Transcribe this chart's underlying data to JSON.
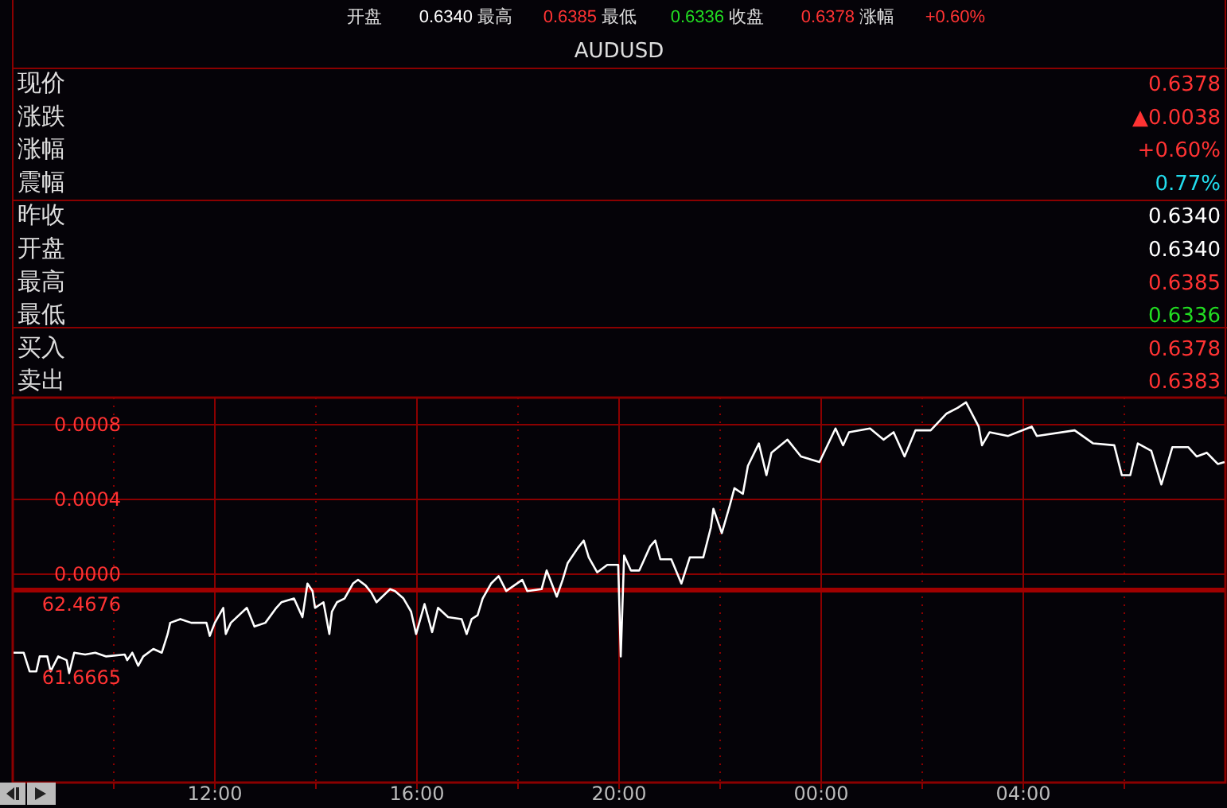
{
  "chart_data": [
    {
      "type": "other",
      "title": "AUDUSD",
      "annotations": [
        "开盘",
        "0.6340",
        "最高",
        "0.6385",
        "最低",
        "0.6336",
        "收盘",
        "0.6378",
        "涨幅",
        "+0.60%",
        "现价",
        "0.6378",
        "涨跌",
        "▲0.0038",
        "涨幅",
        "+0.60%",
        "震幅",
        "0.77%",
        "昨收",
        "0.6340",
        "开盘",
        "0.6340",
        "最高",
        "0.6385",
        "最低",
        "0.6336",
        "买入",
        "0.6378",
        "卖出",
        "0.6383"
      ]
    },
    {
      "type": "line",
      "x": [
        "2000-01-01T08:01",
        "2000-01-01T08:13",
        "2000-01-01T08:20",
        "2000-01-01T08:28",
        "2000-01-01T08:32",
        "2000-01-01T08:41",
        "2000-01-01T08:45",
        "2000-01-01T08:54",
        "2000-01-01T09:04",
        "2000-01-01T09:07",
        "2000-01-01T09:13",
        "2000-01-01T09:26",
        "2000-01-01T09:38",
        "2000-01-01T09:51",
        "2000-01-01T10:13",
        "2000-01-01T10:16",
        "2000-01-01T10:22",
        "2000-01-01T10:29",
        "2000-01-01T10:35",
        "2000-01-01T10:47",
        "2000-01-01T10:57",
        "2000-01-01T11:04",
        "2000-01-01T11:07",
        "2000-01-01T11:19",
        "2000-01-01T11:32",
        "2000-01-01T11:50",
        "2000-01-01T11:54",
        "2000-01-01T12:00",
        "2000-01-01T12:10",
        "2000-01-01T12:13",
        "2000-01-01T12:19",
        "2000-01-01T12:38",
        "2000-01-01T12:47",
        "2000-01-01T13:00",
        "2000-01-01T13:13",
        "2000-01-01T13:19",
        "2000-01-01T13:34",
        "2000-01-01T13:44",
        "2000-01-01T13:50",
        "2000-01-01T13:56",
        "2000-01-01T13:59",
        "2000-01-01T14:09",
        "2000-01-01T14:16",
        "2000-01-01T14:19",
        "2000-01-01T14:25",
        "2000-01-01T14:34",
        "2000-01-01T14:44",
        "2000-01-01T14:50",
        "2000-01-01T14:59",
        "2000-01-01T15:06",
        "2000-01-01T15:12",
        "2000-01-01T15:28",
        "2000-01-01T15:34",
        "2000-01-01T15:44",
        "2000-01-01T15:53",
        "2000-01-01T15:59",
        "2000-01-01T16:09",
        "2000-01-01T16:18",
        "2000-01-01T16:25",
        "2000-01-01T16:37",
        "2000-01-01T16:53",
        "2000-01-01T16:59",
        "2000-01-01T17:05",
        "2000-01-01T17:12",
        "2000-01-01T17:18",
        "2000-01-01T17:28",
        "2000-01-01T17:37",
        "2000-01-01T17:46",
        "2000-01-01T18:05",
        "2000-01-01T18:11",
        "2000-01-01T18:28",
        "2000-01-01T18:34",
        "2000-01-01T18:46",
        "2000-01-01T18:53",
        "2000-01-01T18:59",
        "2000-01-01T19:11",
        "2000-01-01T19:18",
        "2000-01-01T19:24",
        "2000-01-01T19:34",
        "2000-01-01T19:46",
        "2000-01-01T19:59",
        "2000-01-01T20:02",
        "2000-01-01T20:06",
        "2000-01-01T20:14",
        "2000-01-01T20:24",
        "2000-01-01T20:30",
        "2000-01-01T20:37",
        "2000-01-01T20:43",
        "2000-01-01T20:49",
        "2000-01-01T21:02",
        "2000-01-01T21:14",
        "2000-01-01T21:24",
        "2000-01-01T21:40",
        "2000-01-01T21:49",
        "2000-01-01T21:52",
        "2000-01-01T22:02",
        "2000-01-01T22:11",
        "2000-01-01T22:17",
        "2000-01-01T22:27",
        "2000-01-01T22:33",
        "2000-01-01T22:46",
        "2000-01-01T22:55",
        "2000-01-01T23:01",
        "2000-01-01T23:20",
        "2000-01-01T23:36",
        "2000-01-01T23:58",
        "2000-01-02T00:17",
        "2000-01-02T00:26",
        "2000-01-02T00:33",
        "2000-01-02T00:58",
        "2000-01-02T01:14",
        "2000-01-02T01:26",
        "2000-01-02T01:39",
        "2000-01-02T01:52",
        "2000-01-02T02:10",
        "2000-01-02T02:29",
        "2000-01-02T02:42",
        "2000-01-02T02:52",
        "2000-01-02T03:07",
        "2000-01-02T03:11",
        "2000-01-02T03:20",
        "2000-01-02T03:42",
        "2000-01-02T04:10",
        "2000-01-02T04:16",
        "2000-01-02T05:01",
        "2000-01-02T05:23",
        "2000-01-02T05:48",
        "2000-01-02T05:57",
        "2000-01-02T06:07",
        "2000-01-02T06:16",
        "2000-01-02T06:32",
        "2000-01-02T06:44",
        "2000-01-02T06:57",
        "2000-01-02T07:16",
        "2000-01-02T07:26",
        "2000-01-02T07:38",
        "2000-01-02T07:51",
        "2000-01-02T07:59"
      ],
      "series": [
        {
          "color": "#ffffff",
          "values": [
            -0.00042,
            -0.00042,
            -0.00052,
            -0.00052,
            -0.00044,
            -0.00044,
            -0.00052,
            -0.00044,
            -0.00046,
            -0.00053,
            -0.00042,
            -0.00043,
            -0.00042,
            -0.00044,
            -0.00043,
            -0.00046,
            -0.00042,
            -0.00049,
            -0.00044,
            -0.0004,
            -0.00042,
            -0.00032,
            -0.00026,
            -0.00024,
            -0.00026,
            -0.00026,
            -0.00033,
            -0.00026,
            -0.00018,
            -0.00032,
            -0.00026,
            -0.00018,
            -0.00028,
            -0.00026,
            -0.00018,
            -0.00015,
            -0.00013,
            -0.00023,
            -5e-05,
            -9e-05,
            -0.00018,
            -0.00015,
            -0.00032,
            -0.0002,
            -0.00015,
            -0.00013,
            -5e-05,
            -3e-05,
            -6e-05,
            -0.0001,
            -0.00015,
            -8e-05,
            -9e-05,
            -0.00013,
            -0.0002,
            -0.00032,
            -0.00016,
            -0.00031,
            -0.00018,
            -0.00023,
            -0.00024,
            -0.00032,
            -0.00024,
            -0.00022,
            -0.00013,
            -5e-05,
            -1e-05,
            -9e-05,
            -3e-05,
            -9e-05,
            -8e-05,
            2e-05,
            -0.00012,
            -3e-05,
            6e-05,
            0.00014,
            0.00018,
            9e-05,
            1e-05,
            5e-05,
            5e-05,
            -0.00044,
            0.0001,
            2e-05,
            2e-05,
            8e-05,
            0.00015,
            0.00018,
            8e-05,
            8e-05,
            -5e-05,
            9e-05,
            9e-05,
            0.00025,
            0.00035,
            0.00022,
            0.00036,
            0.00046,
            0.00043,
            0.00058,
            0.0007,
            0.00053,
            0.00065,
            0.00072,
            0.00063,
            0.0006,
            0.00078,
            0.00069,
            0.00076,
            0.00078,
            0.00072,
            0.00076,
            0.00063,
            0.00077,
            0.00077,
            0.00086,
            0.00089,
            0.00092,
            0.00079,
            0.00069,
            0.00076,
            0.00074,
            0.00079,
            0.00074,
            0.00077,
            0.0007,
            0.00069,
            0.00053,
            0.00053,
            0.0007,
            0.00066,
            0.00048,
            0.00068,
            0.00068,
            0.00063,
            0.00065,
            0.00059,
            0.0006
          ]
        }
      ],
      "xlim": [
        "2000-01-01T08:00",
        "2000-01-02T08:00"
      ],
      "xticks": [
        {
          "value": "2000-01-01T10:00",
          "label": null
        },
        {
          "value": "2000-01-01T12:00",
          "label": "12:00"
        },
        {
          "value": "2000-01-01T14:00",
          "label": null
        },
        {
          "value": "2000-01-01T16:00",
          "label": "16:00"
        },
        {
          "value": "2000-01-01T18:00",
          "label": null
        },
        {
          "value": "2000-01-01T20:00",
          "label": "20:00"
        },
        {
          "value": "2000-01-01T22:00",
          "label": null
        },
        {
          "value": "2000-01-02T00:00",
          "label": "00:00"
        },
        {
          "value": "2000-01-02T02:00",
          "label": null
        },
        {
          "value": "2000-01-02T04:00",
          "label": "04:00"
        },
        {
          "value": "2000-01-02T06:00",
          "label": null
        }
      ],
      "ylim": [
        -0.001115,
        0.000945
      ],
      "yticks": [
        {
          "value": 0.0008,
          "label": "0.0008"
        },
        {
          "value": 0.0004,
          "label": "0.0004"
        },
        {
          "value": 0,
          "label": "0.0000"
        }
      ],
      "y2lim": [
        60.517,
        64.732
      ],
      "y2ticks": [
        62.4676,
        61.6665
      ],
      "grid": true,
      "ref_lines": [
        {
          "axis": "y",
          "value": -8.5e-05,
          "color": "#a00000"
        }
      ]
    }
  ]
}
